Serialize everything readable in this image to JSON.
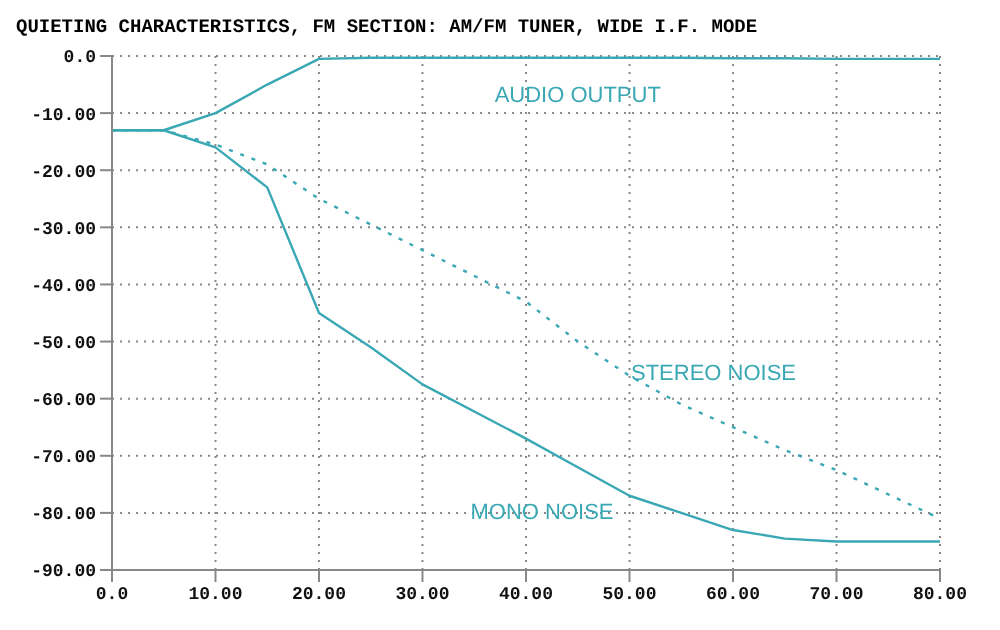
{
  "chart_data": {
    "type": "line",
    "title": "QUIETING CHARACTERISTICS, FM SECTION: AM/FM TUNER, WIDE I.F. MODE",
    "x": [
      0,
      5,
      10,
      15,
      20,
      25,
      30,
      40,
      45,
      50,
      55,
      60,
      65,
      70,
      80
    ],
    "series": [
      {
        "name": "AUDIO OUTPUT",
        "color": "#3aa8b4",
        "line_style": "solid",
        "values": [
          -13,
          -13,
          -10,
          -5,
          -0.5,
          -0.3,
          -0.3,
          -0.3,
          -0.3,
          -0.3,
          -0.3,
          -0.4,
          -0.4,
          -0.5,
          -0.5
        ]
      },
      {
        "name": "STEREO NOISE",
        "color": "#3aa8b4",
        "line_style": "dotted",
        "values": [
          -13,
          -13,
          -15.5,
          -19,
          -25,
          -29.5,
          -34,
          -43,
          -50,
          -56,
          -61,
          -65,
          -69,
          -72.5,
          -81
        ]
      },
      {
        "name": "MONO NOISE",
        "color": "#3aa8b4",
        "line_style": "solid",
        "values": [
          -13,
          -13,
          -16,
          -23,
          -45,
          -51,
          -57.5,
          -67,
          -72,
          -77,
          -80,
          -83,
          -84.5,
          -85,
          -85
        ]
      }
    ],
    "xlim": [
      0,
      80
    ],
    "ylim": [
      -90,
      0
    ],
    "xticks": [
      {
        "value": 0,
        "label": "0.0"
      },
      {
        "value": 10,
        "label": "10.00"
      },
      {
        "value": 20,
        "label": "20.00"
      },
      {
        "value": 30,
        "label": "30.00"
      },
      {
        "value": 40,
        "label": "40.00"
      },
      {
        "value": 50,
        "label": "50.00"
      },
      {
        "value": 60,
        "label": "60.00"
      },
      {
        "value": 70,
        "label": "70.00"
      },
      {
        "value": 80,
        "label": "80.00"
      }
    ],
    "yticks": [
      {
        "value": 0,
        "label": "0.0"
      },
      {
        "value": -10,
        "label": "-10.00"
      },
      {
        "value": -20,
        "label": "-20.00"
      },
      {
        "value": -30,
        "label": "-30.00"
      },
      {
        "value": -40,
        "label": "-40.00"
      },
      {
        "value": -50,
        "label": "-50.00"
      },
      {
        "value": -60,
        "label": "-60.00"
      },
      {
        "value": -70,
        "label": "-70.00"
      },
      {
        "value": -80,
        "label": "-80.00"
      },
      {
        "value": -90,
        "label": "-90.00"
      }
    ],
    "grid": true,
    "legend": false,
    "marker": "none"
  }
}
